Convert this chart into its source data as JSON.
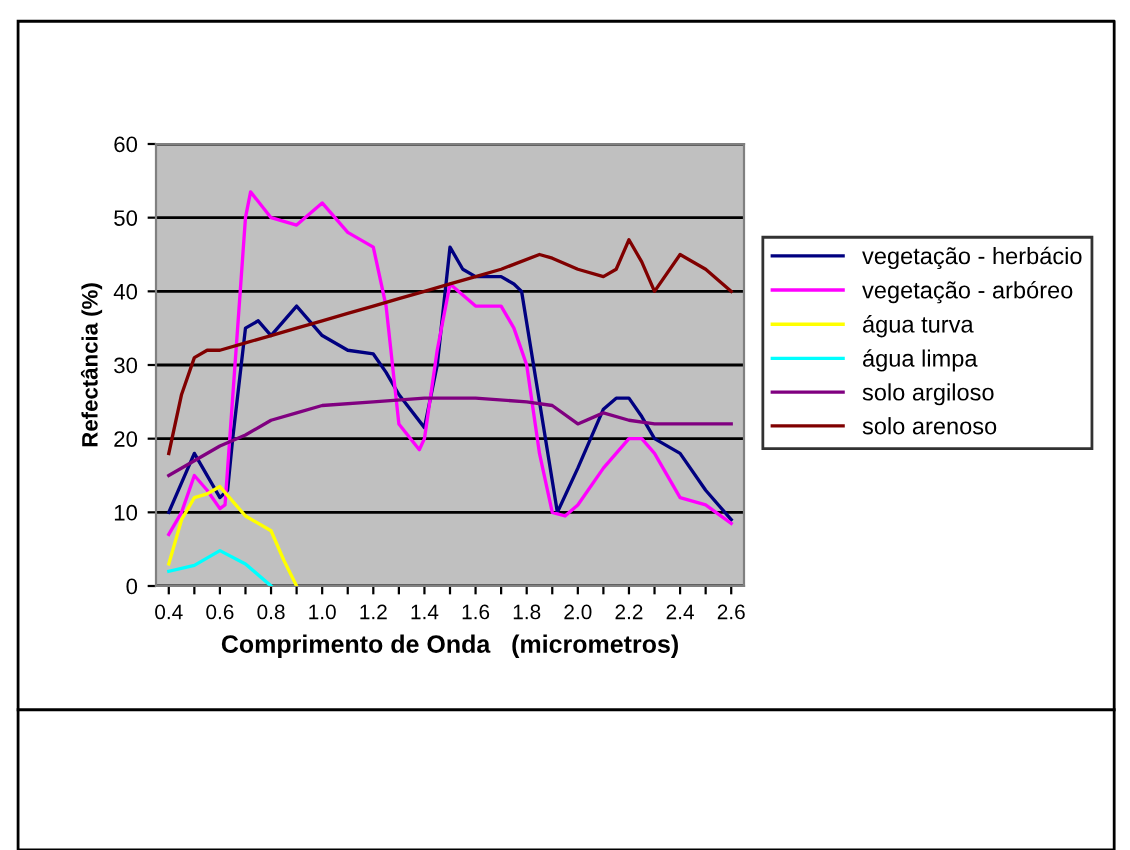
{
  "chart_data": {
    "type": "line",
    "xlabel": "Comprimento de Onda   (micrometros)",
    "ylabel": "Refectância (%)",
    "xlim": [
      0.35,
      2.65
    ],
    "ylim": [
      0,
      60
    ],
    "yticks": [
      0,
      10,
      20,
      30,
      40,
      50,
      60
    ],
    "xticks": [
      {
        "value": 0.4,
        "label": "0.4"
      },
      {
        "value": 0.5,
        "label": null
      },
      {
        "value": 0.6,
        "label": "0.6"
      },
      {
        "value": 0.7,
        "label": null
      },
      {
        "value": 0.8,
        "label": "0.8"
      },
      {
        "value": 0.9,
        "label": null
      },
      {
        "value": 1.0,
        "label": "1.0"
      },
      {
        "value": 1.1,
        "label": null
      },
      {
        "value": 1.2,
        "label": "1.2"
      },
      {
        "value": 1.3,
        "label": null
      },
      {
        "value": 1.4,
        "label": "1.4"
      },
      {
        "value": 1.5,
        "label": null
      },
      {
        "value": 1.6,
        "label": "1.6"
      },
      {
        "value": 1.7,
        "label": null
      },
      {
        "value": 1.8,
        "label": "1.8"
      },
      {
        "value": 1.9,
        "label": null
      },
      {
        "value": 2.0,
        "label": "2.0"
      },
      {
        "value": 2.1,
        "label": null
      },
      {
        "value": 2.2,
        "label": "2.2"
      },
      {
        "value": 2.3,
        "label": null
      },
      {
        "value": 2.4,
        "label": "2.4"
      },
      {
        "value": 2.5,
        "label": null
      },
      {
        "value": 2.6,
        "label": "2.6"
      }
    ],
    "grid": "y",
    "legend": "right",
    "marker": "none",
    "line_style": "solid",
    "series": [
      {
        "name": "vegetação - herbácio",
        "color": "#000080",
        "x": [
          0.4,
          0.5,
          0.6,
          0.63,
          0.65,
          0.7,
          0.75,
          0.8,
          0.9,
          1.0,
          1.1,
          1.2,
          1.25,
          1.3,
          1.4,
          1.45,
          1.5,
          1.55,
          1.6,
          1.7,
          1.75,
          1.78,
          1.85,
          1.92,
          2.0,
          2.1,
          2.15,
          2.2,
          2.25,
          2.3,
          2.4,
          2.5,
          2.6
        ],
        "values": [
          10,
          18,
          12,
          13,
          20,
          35,
          36,
          34,
          38,
          34,
          32,
          31.5,
          29,
          26,
          21.5,
          30,
          46,
          43,
          42,
          42,
          41,
          40,
          25,
          10,
          16,
          24,
          25.5,
          25.5,
          23,
          20,
          18,
          13,
          9
        ]
      },
      {
        "name": "vegetação - arbóreo",
        "color": "#ff00ff",
        "x": [
          0.4,
          0.45,
          0.5,
          0.55,
          0.6,
          0.62,
          0.7,
          0.72,
          0.8,
          0.9,
          1.0,
          1.1,
          1.2,
          1.25,
          1.3,
          1.38,
          1.4,
          1.45,
          1.5,
          1.6,
          1.7,
          1.75,
          1.8,
          1.85,
          1.9,
          1.95,
          2.0,
          2.1,
          2.2,
          2.25,
          2.3,
          2.4,
          2.5,
          2.6
        ],
        "values": [
          7,
          10,
          15,
          13,
          10.5,
          11,
          50,
          53.5,
          50,
          49,
          52,
          48,
          46,
          38,
          22,
          18.5,
          20,
          32,
          41,
          38,
          38,
          35,
          30,
          18,
          10,
          9.5,
          11,
          16,
          20,
          20,
          18,
          12,
          11,
          8.5
        ]
      },
      {
        "name": "água turva",
        "color": "#ffff00",
        "x": [
          0.4,
          0.45,
          0.5,
          0.55,
          0.6,
          0.7,
          0.8,
          0.85,
          0.9
        ],
        "values": [
          3,
          9,
          12,
          12.5,
          13.5,
          9.5,
          7.5,
          3.5,
          0
        ]
      },
      {
        "name": "água limpa",
        "color": "#00ffff",
        "x": [
          0.4,
          0.5,
          0.6,
          0.7,
          0.8
        ],
        "values": [
          2,
          2.8,
          4.8,
          3,
          0
        ]
      },
      {
        "name": "solo argiloso",
        "color": "#800080",
        "x": [
          0.4,
          0.5,
          0.6,
          0.7,
          0.8,
          0.9,
          1.0,
          1.2,
          1.4,
          1.6,
          1.8,
          1.9,
          2.0,
          2.1,
          2.2,
          2.3,
          2.6
        ],
        "values": [
          15,
          17,
          19,
          20.5,
          22.5,
          23.5,
          24.5,
          25,
          25.5,
          25.5,
          25,
          24.5,
          22,
          23.5,
          22.5,
          22,
          22
        ]
      },
      {
        "name": "solo arenoso",
        "color": "#800000",
        "x": [
          0.4,
          0.45,
          0.5,
          0.55,
          0.6,
          0.7,
          0.8,
          0.9,
          1.0,
          1.1,
          1.2,
          1.3,
          1.4,
          1.5,
          1.6,
          1.7,
          1.85,
          1.9,
          2.0,
          2.1,
          2.15,
          2.2,
          2.25,
          2.3,
          2.4,
          2.5,
          2.6
        ],
        "values": [
          18,
          26,
          31,
          32,
          32,
          33,
          34,
          35,
          36,
          37,
          38,
          39,
          40,
          41,
          42,
          43,
          45,
          44.5,
          43,
          42,
          43,
          47,
          44,
          40,
          45,
          43,
          40
        ]
      }
    ]
  }
}
